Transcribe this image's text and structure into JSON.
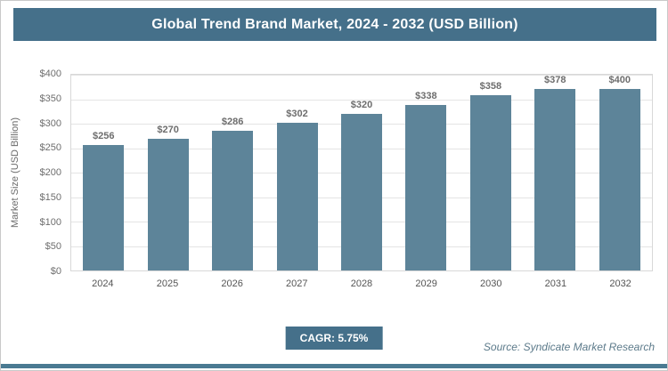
{
  "header": {
    "title": "Global Trend Brand Market, 2024 - 2032 (USD Billion)"
  },
  "chart_data": {
    "type": "bar",
    "title": "Global Trend Brand Market, 2024 - 2032 (USD Billion)",
    "categories": [
      "2024",
      "2025",
      "2026",
      "2027",
      "2028",
      "2029",
      "2030",
      "2031",
      "2032"
    ],
    "values": [
      256,
      270,
      286,
      302,
      320,
      338,
      358,
      378,
      400
    ],
    "value_labels": [
      "$256",
      "$270",
      "$286",
      "$302",
      "$320",
      "$338",
      "$358",
      "$378",
      "$400"
    ],
    "xlabel": "",
    "ylabel": "Market Size (USD Billion)",
    "ylim": [
      0,
      400
    ],
    "ytick_step": 50,
    "ytick_labels": [
      "$400",
      "$350",
      "$300",
      "$250",
      "$200",
      "$150",
      "$100",
      "$50",
      "$0"
    ],
    "grid": "horizontal",
    "legend": "none",
    "bar_color": "#5d8499"
  },
  "footer": {
    "cagr_label": "CAGR: 5.75%",
    "source": "Source: Syndicate Market Research"
  },
  "colors": {
    "accent": "#45708a",
    "bar": "#5d8499",
    "bottom_line": "#4a7a92",
    "gridline": "#e4e4e4",
    "text_gray": "#6d6d6d"
  }
}
